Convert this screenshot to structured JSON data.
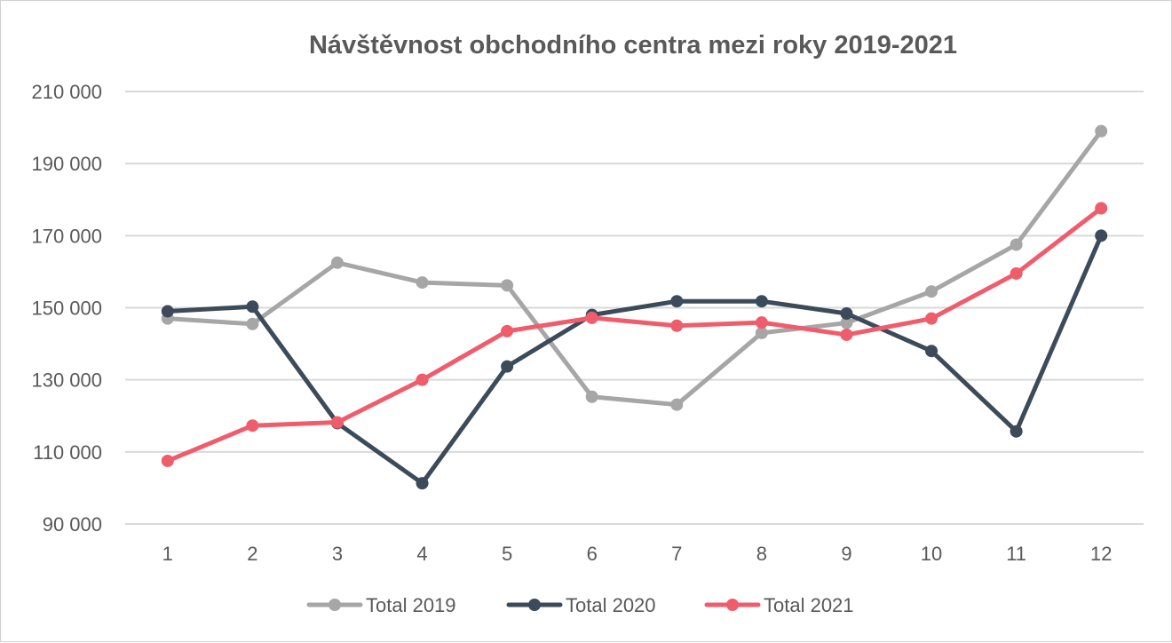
{
  "chart_data": {
    "type": "line",
    "title": "Návštěvnost obchodního centra mezi roky 2019-2021",
    "xlabel": "",
    "ylabel": "",
    "categories": [
      "1",
      "2",
      "3",
      "4",
      "5",
      "6",
      "7",
      "8",
      "9",
      "10",
      "11",
      "12"
    ],
    "ylim": [
      90000,
      210000
    ],
    "yticks": [
      90000,
      110000,
      130000,
      150000,
      170000,
      190000,
      210000
    ],
    "ytick_labels": [
      "90 000",
      "110 000",
      "130 000",
      "150 000",
      "170 000",
      "190 000",
      "210 000"
    ],
    "grid": true,
    "legend_position": "bottom",
    "series": [
      {
        "name": "Total 2019",
        "color": "#a6a6a6",
        "values": [
          147000,
          145500,
          162500,
          157000,
          156200,
          125300,
          123100,
          143000,
          145800,
          154500,
          167500,
          199000
        ]
      },
      {
        "name": "Total 2020",
        "color": "#3c4b5a",
        "values": [
          149000,
          150300,
          118000,
          101300,
          133700,
          148000,
          151800,
          151800,
          148400,
          138000,
          115700,
          170000
        ]
      },
      {
        "name": "Total 2021",
        "color": "#ef5d6d",
        "values": [
          107500,
          117300,
          118200,
          130000,
          143500,
          147200,
          145000,
          145900,
          142500,
          147000,
          159500,
          177600
        ]
      }
    ]
  }
}
